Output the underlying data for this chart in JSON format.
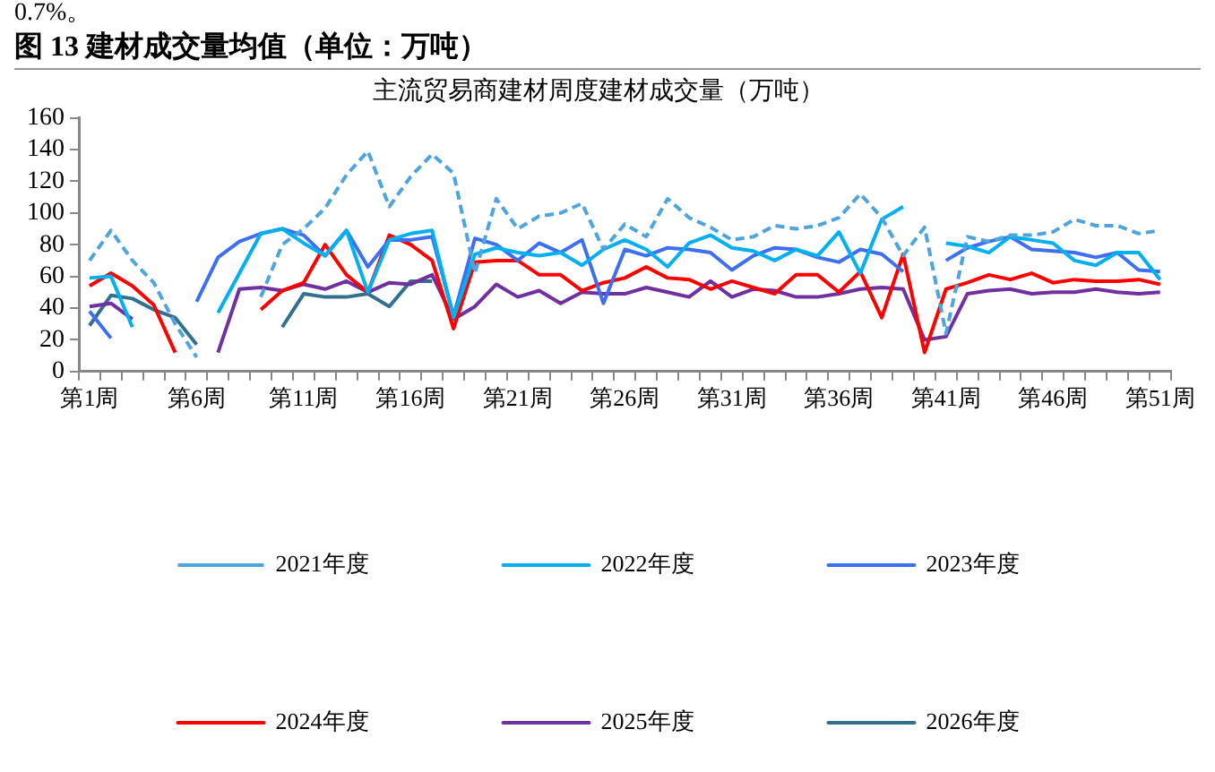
{
  "chart_data": {
    "type": "line",
    "title": "图 13 建材成交量均值（单位：万吨）",
    "subtitle": "主流贸易商建材周度建材成交量（万吨）",
    "annotations": [
      "0.7%。"
    ],
    "categories": [
      "第1周",
      null,
      null,
      null,
      null,
      "第6周",
      null,
      null,
      null,
      null,
      "第11周",
      null,
      null,
      null,
      null,
      "第16周",
      null,
      null,
      null,
      null,
      "第21周",
      null,
      null,
      null,
      null,
      "第26周",
      null,
      null,
      null,
      null,
      "第31周",
      null,
      null,
      null,
      null,
      "第36周",
      null,
      null,
      null,
      null,
      "第41周",
      null,
      null,
      null,
      null,
      "第46周",
      null,
      null,
      null,
      null,
      "第51周"
    ],
    "series": [
      {
        "name": "2021年度",
        "color": "#4ea5dc",
        "line_style": "dashed",
        "values": [
          70,
          89,
          70,
          56,
          30,
          9,
          null,
          null,
          47,
          80,
          90,
          103,
          124,
          139,
          104,
          123,
          137,
          125,
          62,
          109,
          90,
          98,
          100,
          106,
          77,
          93,
          85,
          109,
          97,
          91,
          83,
          85,
          92,
          90,
          92,
          97,
          112,
          97,
          73,
          91,
          24,
          85,
          82,
          86,
          86,
          88,
          96,
          92,
          92,
          87,
          89
        ]
      },
      {
        "name": "2022年度",
        "color": "#00b0f0",
        "values": [
          59,
          60,
          28,
          null,
          null,
          null,
          37,
          62,
          87,
          90,
          81,
          73,
          89,
          50,
          83,
          87,
          89,
          34,
          74,
          78,
          75,
          73,
          75,
          67,
          77,
          83,
          77,
          66,
          81,
          86,
          78,
          76,
          70,
          77,
          73,
          88,
          62,
          96,
          104,
          null,
          81,
          79,
          75,
          85,
          83,
          81,
          70,
          67,
          75,
          75,
          58
        ]
      },
      {
        "name": "2023年度",
        "color": "#3d6ff0",
        "values": [
          38,
          21,
          null,
          null,
          null,
          44,
          72,
          82,
          87,
          90,
          86,
          73,
          89,
          66,
          83,
          83,
          85,
          35,
          84,
          80,
          70,
          81,
          75,
          83,
          43,
          77,
          73,
          78,
          77,
          75,
          64,
          73,
          78,
          77,
          72,
          69,
          77,
          74,
          63,
          null,
          70,
          78,
          82,
          85,
          77,
          76,
          75,
          72,
          75,
          64,
          63
        ]
      },
      {
        "name": "2024年度",
        "color": "#ff0000",
        "values": [
          54,
          62,
          54,
          42,
          12,
          null,
          null,
          null,
          39,
          51,
          56,
          80,
          61,
          50,
          86,
          80,
          70,
          27,
          69,
          70,
          70,
          61,
          61,
          51,
          56,
          59,
          66,
          59,
          58,
          52,
          57,
          53,
          49,
          61,
          61,
          50,
          63,
          34,
          74,
          12,
          52,
          56,
          61,
          58,
          62,
          56,
          58,
          57,
          57,
          58,
          55
        ]
      },
      {
        "name": "2025年度",
        "color": "#7030a0",
        "values": [
          41,
          43,
          33,
          null,
          null,
          null,
          12,
          52,
          53,
          51,
          55,
          52,
          57,
          50,
          56,
          55,
          61,
          33,
          41,
          55,
          47,
          51,
          43,
          50,
          49,
          49,
          53,
          50,
          47,
          57,
          47,
          52,
          51,
          47,
          47,
          49,
          52,
          53,
          52,
          20,
          22,
          49,
          51,
          52,
          49,
          50,
          50,
          52,
          50,
          49,
          50
        ]
      },
      {
        "name": "2026年度",
        "color": "#31708e",
        "values": [
          29,
          48,
          46,
          39,
          34,
          17,
          null,
          null,
          null,
          28,
          49,
          47,
          47,
          49,
          41,
          57,
          57,
          null,
          null,
          null,
          null,
          null,
          null,
          null,
          null,
          null,
          null,
          null,
          null,
          null,
          null,
          null,
          null,
          null,
          null,
          null,
          null,
          null,
          null,
          null,
          null,
          null,
          null,
          null,
          null,
          null,
          null,
          null,
          null,
          null,
          null
        ]
      }
    ],
    "ylim": [
      0,
      160
    ],
    "yticks": [
      0,
      20,
      40,
      60,
      80,
      100,
      120,
      140,
      160
    ],
    "grid": false,
    "legend": "bottom",
    "marker": "none",
    "line_style": "solid"
  }
}
